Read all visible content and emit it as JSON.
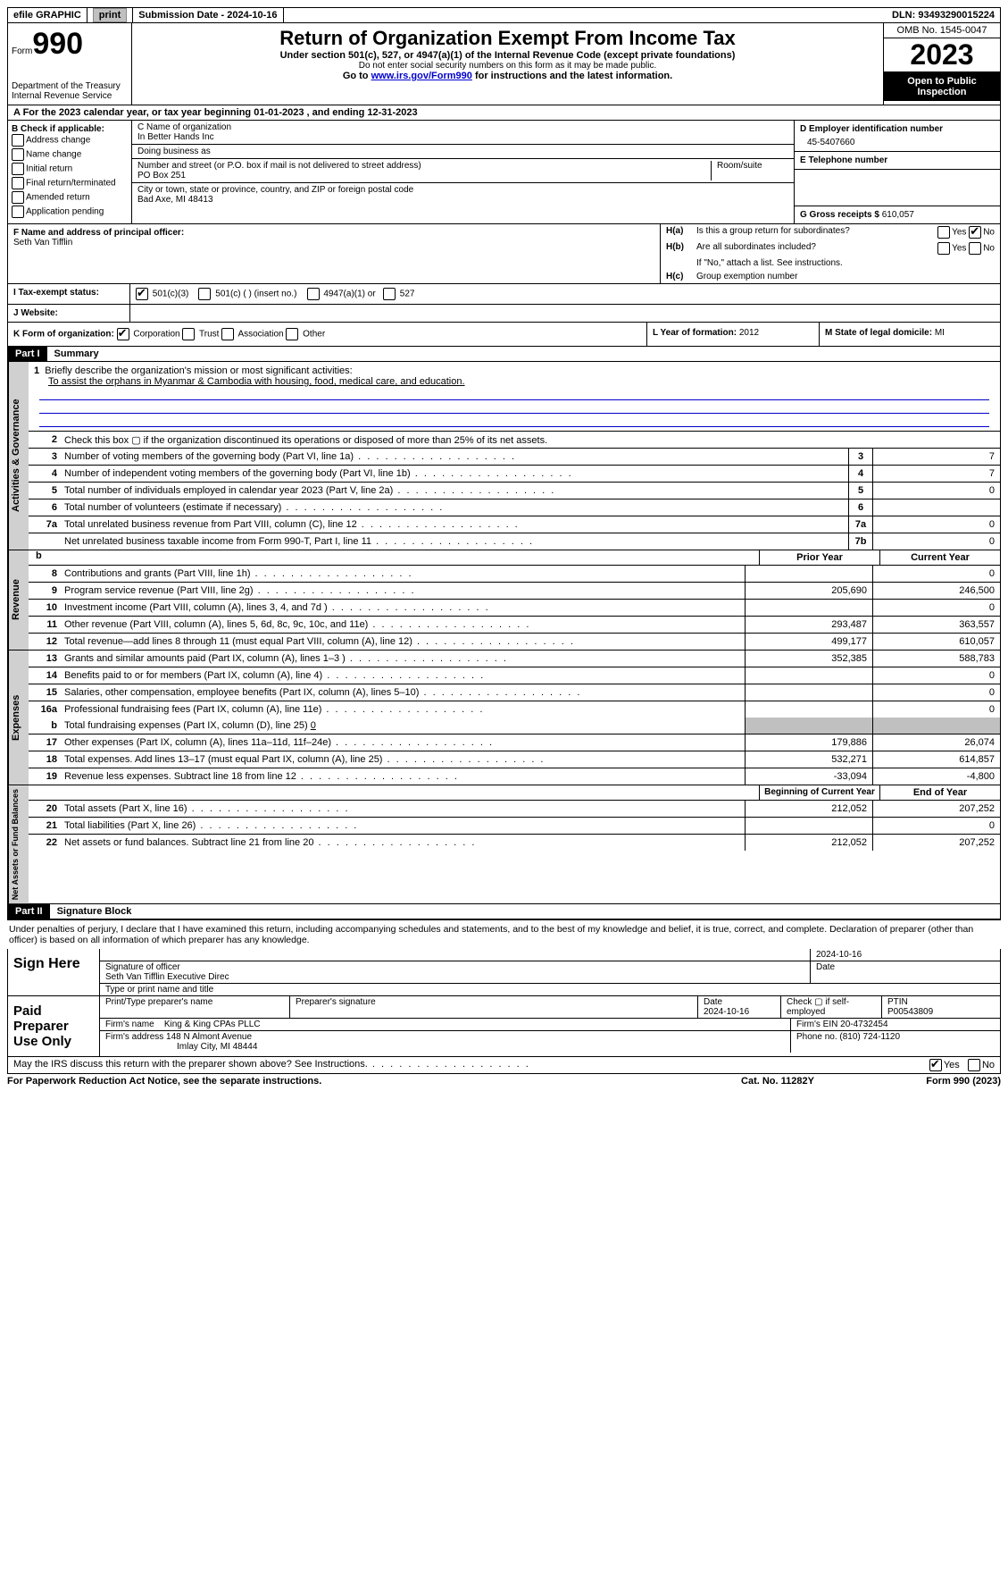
{
  "topbar": {
    "efile": "efile GRAPHIC",
    "print": "print",
    "submission": "Submission Date - 2024-10-16",
    "dln": "DLN: 93493290015224"
  },
  "header": {
    "form_label": "Form",
    "form_number": "990",
    "dept": "Department of the Treasury",
    "irs": "Internal Revenue Service",
    "title": "Return of Organization Exempt From Income Tax",
    "subtitle": "Under section 501(c), 527, or 4947(a)(1) of the Internal Revenue Code (except private foundations)",
    "note1": "Do not enter social security numbers on this form as it may be made public.",
    "note2_pre": "Go to ",
    "note2_link": "www.irs.gov/Form990",
    "note2_post": " for instructions and the latest information.",
    "omb": "OMB No. 1545-0047",
    "year": "2023",
    "inspect": "Open to Public Inspection"
  },
  "row_a": {
    "prefix": "A For the 2023 calendar year, or tax year beginning ",
    "begin": "01-01-2023",
    "mid": " , and ending ",
    "end": "12-31-2023"
  },
  "box_b": {
    "title": "B Check if applicable:",
    "items": [
      "Address change",
      "Name change",
      "Initial return",
      "Final return/terminated",
      "Amended return",
      "Application pending"
    ]
  },
  "box_c": {
    "name_label": "C Name of organization",
    "name": "In Better Hands Inc",
    "dba_label": "Doing business as",
    "dba": "",
    "addr_label": "Number and street (or P.O. box if mail is not delivered to street address)",
    "addr": "PO Box 251",
    "room_label": "Room/suite",
    "city_label": "City or town, state or province, country, and ZIP or foreign postal code",
    "city": "Bad Axe, MI  48413"
  },
  "box_d": {
    "label": "D Employer identification number",
    "value": "45-5407660"
  },
  "box_e": {
    "label": "E Telephone number",
    "value": ""
  },
  "box_g": {
    "label": "G Gross receipts $",
    "value": "610,057"
  },
  "box_f": {
    "label": "F  Name and address of principal officer:",
    "name": "Seth Van Tifflin"
  },
  "box_h": {
    "a_label": "H(a)",
    "a_text": "Is this a group return for subordinates?",
    "a_yes": "Yes",
    "a_no": "No",
    "b_label": "H(b)",
    "b_text": "Are all subordinates included?",
    "b_note": "If \"No,\" attach a list. See instructions.",
    "c_label": "H(c)",
    "c_text": "Group exemption number"
  },
  "tax_status": {
    "label": "I   Tax-exempt status:",
    "opts": [
      "501(c)(3)",
      "501(c) (  ) (insert no.)",
      "4947(a)(1) or",
      "527"
    ]
  },
  "website": {
    "label": "J   Website:",
    "value": ""
  },
  "row_k": {
    "label": "K Form of organization:",
    "opts": [
      "Corporation",
      "Trust",
      "Association",
      "Other"
    ]
  },
  "row_l": {
    "label": "L Year of formation:",
    "value": "2012"
  },
  "row_m": {
    "label": "M State of legal domicile:",
    "value": "MI"
  },
  "part1": {
    "label": "Part I",
    "title": "Summary"
  },
  "summary": {
    "sec1_label": "Activities & Governance",
    "line1_label": "1",
    "line1_text": "Briefly describe the organization's mission or most significant activities:",
    "line1_mission": "To assist the orphans in Myanmar & Cambodia with housing, food, medical care, and education.",
    "line2_label": "2",
    "line2_text": "Check this box  ▢  if the organization discontinued its operations or disposed of more than 25% of its net assets.",
    "lines_gov": [
      {
        "n": "3",
        "d": "Number of voting members of the governing body (Part VI, line 1a)",
        "box": "3",
        "v": "7"
      },
      {
        "n": "4",
        "d": "Number of independent voting members of the governing body (Part VI, line 1b)",
        "box": "4",
        "v": "7"
      },
      {
        "n": "5",
        "d": "Total number of individuals employed in calendar year 2023 (Part V, line 2a)",
        "box": "5",
        "v": "0"
      },
      {
        "n": "6",
        "d": "Total number of volunteers (estimate if necessary)",
        "box": "6",
        "v": ""
      },
      {
        "n": "7a",
        "d": "Total unrelated business revenue from Part VIII, column (C), line 12",
        "box": "7a",
        "v": "0"
      },
      {
        "n": "",
        "d": "Net unrelated business taxable income from Form 990-T, Part I, line 11",
        "box": "7b",
        "v": "0"
      }
    ],
    "sec2_label": "Revenue",
    "yh_blank": "b",
    "yh_prior": "Prior Year",
    "yh_current": "Current Year",
    "lines_rev": [
      {
        "n": "8",
        "d": "Contributions and grants (Part VIII, line 1h)",
        "p": "",
        "c": "0"
      },
      {
        "n": "9",
        "d": "Program service revenue (Part VIII, line 2g)",
        "p": "205,690",
        "c": "246,500"
      },
      {
        "n": "10",
        "d": "Investment income (Part VIII, column (A), lines 3, 4, and 7d )",
        "p": "",
        "c": "0"
      },
      {
        "n": "11",
        "d": "Other revenue (Part VIII, column (A), lines 5, 6d, 8c, 9c, 10c, and 11e)",
        "p": "293,487",
        "c": "363,557"
      },
      {
        "n": "12",
        "d": "Total revenue—add lines 8 through 11 (must equal Part VIII, column (A), line 12)",
        "p": "499,177",
        "c": "610,057"
      }
    ],
    "sec3_label": "Expenses",
    "lines_exp": [
      {
        "n": "13",
        "d": "Grants and similar amounts paid (Part IX, column (A), lines 1–3 )",
        "p": "352,385",
        "c": "588,783"
      },
      {
        "n": "14",
        "d": "Benefits paid to or for members (Part IX, column (A), line 4)",
        "p": "",
        "c": "0"
      },
      {
        "n": "15",
        "d": "Salaries, other compensation, employee benefits (Part IX, column (A), lines 5–10)",
        "p": "",
        "c": "0"
      },
      {
        "n": "16a",
        "d": "Professional fundraising fees (Part IX, column (A), line 11e)",
        "p": "",
        "c": "0"
      }
    ],
    "line16b_n": "b",
    "line16b_d": "Total fundraising expenses (Part IX, column (D), line 25)",
    "line16b_v": "0",
    "lines_exp2": [
      {
        "n": "17",
        "d": "Other expenses (Part IX, column (A), lines 11a–11d, 11f–24e)",
        "p": "179,886",
        "c": "26,074"
      },
      {
        "n": "18",
        "d": "Total expenses. Add lines 13–17 (must equal Part IX, column (A), line 25)",
        "p": "532,271",
        "c": "614,857"
      },
      {
        "n": "19",
        "d": "Revenue less expenses. Subtract line 18 from line 12",
        "p": "-33,094",
        "c": "-4,800"
      }
    ],
    "sec4_label": "Net Assets or Fund Balances",
    "yh2_begin": "Beginning of Current Year",
    "yh2_end": "End of Year",
    "lines_net": [
      {
        "n": "20",
        "d": "Total assets (Part X, line 16)",
        "p": "212,052",
        "c": "207,252"
      },
      {
        "n": "21",
        "d": "Total liabilities (Part X, line 26)",
        "p": "",
        "c": "0"
      },
      {
        "n": "22",
        "d": "Net assets or fund balances. Subtract line 21 from line 20",
        "p": "212,052",
        "c": "207,252"
      }
    ]
  },
  "part2": {
    "label": "Part II",
    "title": "Signature Block"
  },
  "perjury": "Under penalties of perjury, I declare that I have examined this return, including accompanying schedules and statements, and to the best of my knowledge and belief, it is true, correct, and complete. Declaration of preparer (other than officer) is based on all information of which preparer has any knowledge.",
  "sign": {
    "label": "Sign Here",
    "date": "2024-10-16",
    "sig_label": "Signature of officer",
    "officer": "Seth Van Tifflin  Executive Direc",
    "type_label": "Type or print name and title",
    "date_label": "Date"
  },
  "preparer": {
    "label": "Paid Preparer Use Only",
    "h1": "Print/Type preparer's name",
    "h2": "Preparer's signature",
    "h3_label": "Date",
    "h3": "2024-10-16",
    "h4": "Check ▢ if self-employed",
    "h5_label": "PTIN",
    "h5": "P00543809",
    "firm_name_label": "Firm's name",
    "firm_name": "King & King CPAs PLLC",
    "firm_ein_label": "Firm's EIN",
    "firm_ein": "20-4732454",
    "firm_addr_label": "Firm's address",
    "firm_addr1": "148 N Almont Avenue",
    "firm_addr2": "Imlay City, MI  48444",
    "phone_label": "Phone no.",
    "phone": "(810) 724-1120"
  },
  "discuss": {
    "text": "May the IRS discuss this return with the preparer shown above? See Instructions.",
    "yes": "Yes",
    "no": "No"
  },
  "footer": {
    "left": "For Paperwork Reduction Act Notice, see the separate instructions.",
    "center": "Cat. No. 11282Y",
    "right_pre": "Form ",
    "right_form": "990",
    "right_post": " (2023)"
  }
}
